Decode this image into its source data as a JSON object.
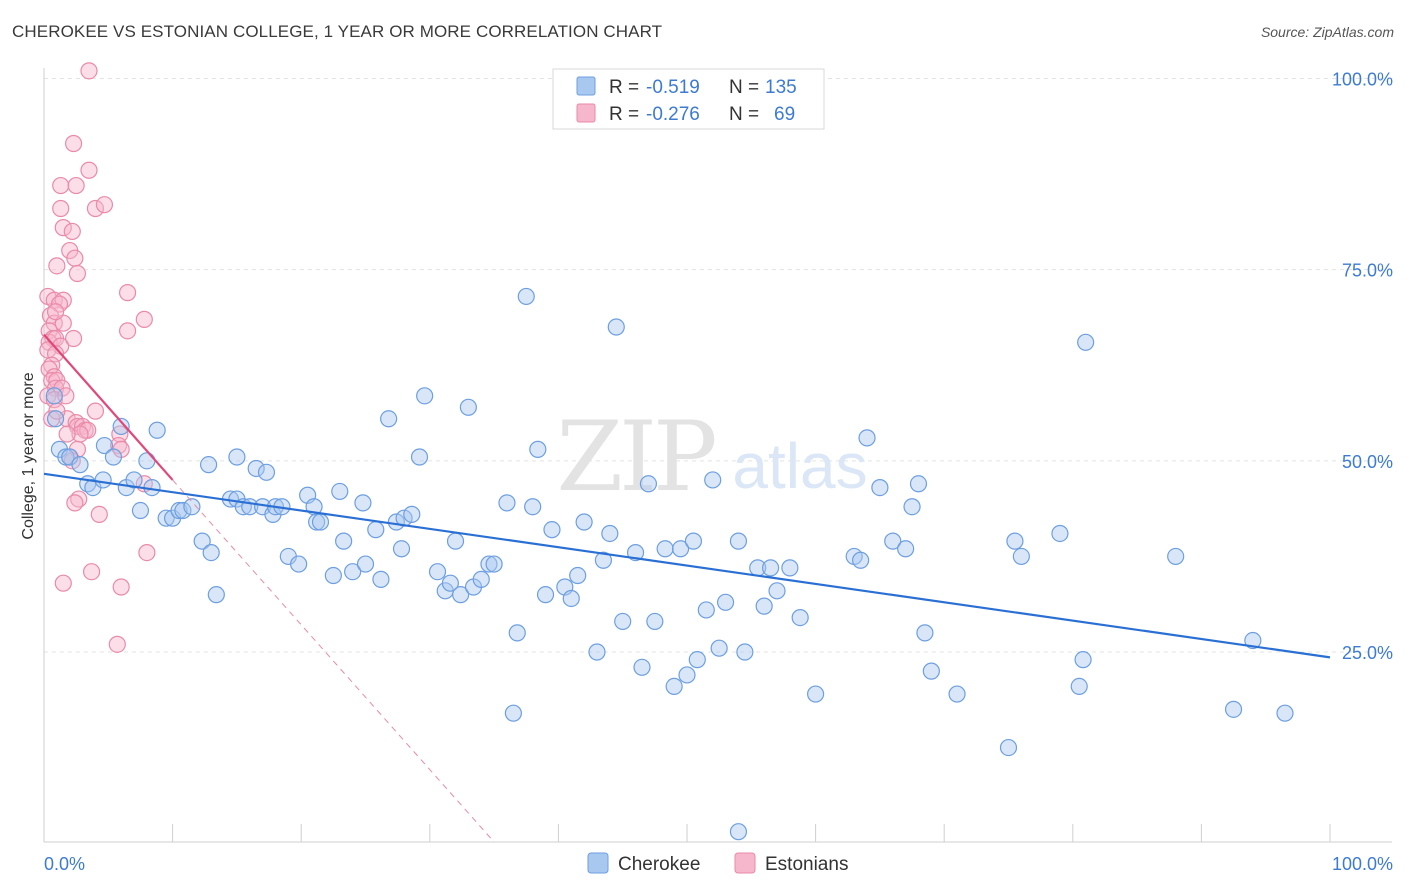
{
  "header": {
    "title": "CHEROKEE VS ESTONIAN COLLEGE, 1 YEAR OR MORE CORRELATION CHART",
    "source": "Source: ZipAtlas.com"
  },
  "colors": {
    "blue_fill": "#a9c8ef",
    "blue_stroke": "#6d9fe0",
    "blue_line": "#2a6fd4",
    "pink_fill": "#f6b6cb",
    "pink_stroke": "#ea8aa9",
    "pink_line": "#e0487a",
    "grid": "#e3e3e3",
    "axis_text": "#3d7bd1"
  },
  "legend_top": {
    "rows": [
      {
        "r_label": "R =",
        "r_value": "-0.519",
        "n_label": "N =",
        "n_value": "135"
      },
      {
        "r_label": "R =",
        "r_value": "-0.276",
        "n_label": "N =",
        "n_value": "69"
      }
    ]
  },
  "watermark": {
    "zip": "ZIP",
    "atlas": "atlas"
  },
  "chart_data": {
    "type": "scatter",
    "title": "CHEROKEE VS ESTONIAN COLLEGE, 1 YEAR OR MORE CORRELATION CHART",
    "xlabel": "",
    "ylabel": "College, 1 year or more",
    "xlim": [
      0,
      100
    ],
    "ylim": [
      0,
      102
    ],
    "x_tick_labels": [
      "0.0%",
      "100.0%"
    ],
    "y_tick_labels": [
      "25.0%",
      "50.0%",
      "75.0%",
      "100.0%"
    ],
    "y_ticks": [
      25,
      50,
      75,
      100
    ],
    "legend": [
      "Cherokee",
      "Estonians"
    ],
    "series": [
      {
        "name": "Cherokee",
        "r": -0.519,
        "n": 135,
        "trend": {
          "x0": 0,
          "y0": 48.3,
          "x1": 100,
          "y1": 24.3
        },
        "points": [
          [
            0.9,
            55.5
          ],
          [
            0.8,
            58.5
          ],
          [
            1.2,
            51.5
          ],
          [
            1.7,
            50.5
          ],
          [
            2.0,
            50.5
          ],
          [
            2.8,
            49.5
          ],
          [
            3.4,
            47.0
          ],
          [
            3.8,
            46.5
          ],
          [
            4.6,
            47.5
          ],
          [
            4.7,
            52.0
          ],
          [
            5.4,
            50.5
          ],
          [
            6.0,
            54.5
          ],
          [
            6.4,
            46.5
          ],
          [
            7.0,
            47.5
          ],
          [
            7.5,
            43.5
          ],
          [
            8.0,
            50.0
          ],
          [
            8.4,
            46.5
          ],
          [
            8.8,
            54.0
          ],
          [
            9.5,
            42.5
          ],
          [
            10.0,
            42.5
          ],
          [
            10.5,
            43.5
          ],
          [
            10.8,
            43.5
          ],
          [
            11.5,
            44.0
          ],
          [
            12.3,
            39.5
          ],
          [
            12.8,
            49.5
          ],
          [
            13.0,
            38.0
          ],
          [
            13.4,
            32.5
          ],
          [
            14.5,
            45.0
          ],
          [
            15.0,
            45.0
          ],
          [
            15.0,
            50.5
          ],
          [
            15.5,
            44.0
          ],
          [
            16.0,
            44.0
          ],
          [
            16.5,
            49.0
          ],
          [
            17.0,
            44.0
          ],
          [
            17.3,
            48.5
          ],
          [
            17.8,
            43.0
          ],
          [
            18.0,
            44.0
          ],
          [
            18.5,
            44.0
          ],
          [
            19.0,
            37.5
          ],
          [
            19.8,
            36.5
          ],
          [
            20.5,
            45.5
          ],
          [
            21.0,
            44.0
          ],
          [
            21.2,
            42.0
          ],
          [
            21.5,
            42.0
          ],
          [
            22.5,
            35.0
          ],
          [
            23.0,
            46.0
          ],
          [
            23.3,
            39.5
          ],
          [
            24.0,
            35.5
          ],
          [
            24.8,
            44.5
          ],
          [
            25.0,
            36.5
          ],
          [
            25.8,
            41.0
          ],
          [
            26.2,
            34.5
          ],
          [
            26.8,
            55.5
          ],
          [
            27.4,
            42.0
          ],
          [
            27.8,
            38.5
          ],
          [
            28.0,
            42.5
          ],
          [
            28.6,
            43.0
          ],
          [
            29.2,
            50.5
          ],
          [
            29.6,
            58.5
          ],
          [
            30.6,
            35.5
          ],
          [
            31.2,
            33.0
          ],
          [
            31.6,
            34.0
          ],
          [
            32.0,
            39.5
          ],
          [
            32.4,
            32.5
          ],
          [
            33.0,
            57.0
          ],
          [
            33.4,
            33.5
          ],
          [
            34.0,
            34.5
          ],
          [
            34.6,
            36.5
          ],
          [
            35.0,
            36.5
          ],
          [
            36.0,
            44.5
          ],
          [
            36.5,
            17.0
          ],
          [
            36.8,
            27.5
          ],
          [
            37.5,
            71.5
          ],
          [
            38.0,
            44.0
          ],
          [
            38.4,
            51.5
          ],
          [
            39.0,
            32.5
          ],
          [
            39.5,
            41.0
          ],
          [
            40.5,
            33.5
          ],
          [
            41.0,
            32.0
          ],
          [
            41.5,
            35.0
          ],
          [
            42.0,
            42.0
          ],
          [
            43.0,
            25.0
          ],
          [
            43.5,
            37.0
          ],
          [
            44.0,
            40.5
          ],
          [
            44.5,
            67.5
          ],
          [
            45.0,
            29.0
          ],
          [
            46.0,
            38.0
          ],
          [
            46.5,
            23.0
          ],
          [
            47.0,
            47.0
          ],
          [
            47.5,
            29.0
          ],
          [
            48.3,
            38.5
          ],
          [
            49.0,
            20.5
          ],
          [
            49.5,
            38.5
          ],
          [
            50.0,
            22.0
          ],
          [
            50.5,
            39.5
          ],
          [
            50.8,
            24.0
          ],
          [
            51.5,
            30.5
          ],
          [
            52.0,
            47.5
          ],
          [
            52.5,
            25.5
          ],
          [
            53.0,
            31.5
          ],
          [
            54.0,
            39.5
          ],
          [
            54.5,
            25.0
          ],
          [
            55.5,
            36.0
          ],
          [
            56.0,
            31.0
          ],
          [
            56.5,
            36.0
          ],
          [
            57.0,
            33.0
          ],
          [
            58.0,
            36.0
          ],
          [
            58.8,
            29.5
          ],
          [
            60.0,
            19.5
          ],
          [
            63.0,
            37.5
          ],
          [
            63.5,
            37.0
          ],
          [
            64.0,
            53.0
          ],
          [
            65.0,
            46.5
          ],
          [
            66.0,
            39.5
          ],
          [
            67.0,
            38.5
          ],
          [
            67.5,
            44.0
          ],
          [
            68.0,
            47.0
          ],
          [
            68.5,
            27.5
          ],
          [
            69.0,
            22.5
          ],
          [
            71.0,
            19.5
          ],
          [
            75.0,
            12.5
          ],
          [
            75.5,
            39.5
          ],
          [
            76.0,
            37.5
          ],
          [
            79.0,
            40.5
          ],
          [
            80.5,
            20.5
          ],
          [
            80.8,
            24.0
          ],
          [
            81.0,
            65.5
          ],
          [
            88.0,
            37.5
          ],
          [
            92.5,
            17.5
          ],
          [
            94.0,
            26.5
          ],
          [
            96.5,
            17.0
          ],
          [
            54.0,
            1.5
          ]
        ]
      },
      {
        "name": "Estonians",
        "r": -0.276,
        "n": 69,
        "trend": {
          "x0": 0,
          "y0": 66.5,
          "x1": 10,
          "y1": 47.5
        },
        "trend_ext": {
          "x0": 10,
          "y0": 47.5,
          "x1": 35,
          "y1": 0
        },
        "points": [
          [
            3.5,
            101
          ],
          [
            2.3,
            91.5
          ],
          [
            3.5,
            88.0
          ],
          [
            1.3,
            86.0
          ],
          [
            2.5,
            86.0
          ],
          [
            4.0,
            83.0
          ],
          [
            4.7,
            83.5
          ],
          [
            1.3,
            83.0
          ],
          [
            1.5,
            80.5
          ],
          [
            2.2,
            80.0
          ],
          [
            2.0,
            77.5
          ],
          [
            2.4,
            76.5
          ],
          [
            1.0,
            75.5
          ],
          [
            2.6,
            74.5
          ],
          [
            0.3,
            71.5
          ],
          [
            0.8,
            71.0
          ],
          [
            1.5,
            71.0
          ],
          [
            1.2,
            70.5
          ],
          [
            0.5,
            69.0
          ],
          [
            0.8,
            68.0
          ],
          [
            1.5,
            68.0
          ],
          [
            0.4,
            67.0
          ],
          [
            0.7,
            66.0
          ],
          [
            0.4,
            65.5
          ],
          [
            0.9,
            66.0
          ],
          [
            1.3,
            65.0
          ],
          [
            0.3,
            64.5
          ],
          [
            0.9,
            64.0
          ],
          [
            0.6,
            62.5
          ],
          [
            0.4,
            62.0
          ],
          [
            0.8,
            61.0
          ],
          [
            0.6,
            60.5
          ],
          [
            1.0,
            60.5
          ],
          [
            0.9,
            59.5
          ],
          [
            1.4,
            59.5
          ],
          [
            0.3,
            58.5
          ],
          [
            0.8,
            58.0
          ],
          [
            0.6,
            55.5
          ],
          [
            1.8,
            55.5
          ],
          [
            4.0,
            56.5
          ],
          [
            2.5,
            55.0
          ],
          [
            2.6,
            54.5
          ],
          [
            3.0,
            54.5
          ],
          [
            3.2,
            54.0
          ],
          [
            3.4,
            54.0
          ],
          [
            2.8,
            53.5
          ],
          [
            1.8,
            53.5
          ],
          [
            5.9,
            53.5
          ],
          [
            5.8,
            52.0
          ],
          [
            2.6,
            51.5
          ],
          [
            2.0,
            50.5
          ],
          [
            2.2,
            50.0
          ],
          [
            6.0,
            51.5
          ],
          [
            7.8,
            47.0
          ],
          [
            2.7,
            45.0
          ],
          [
            2.4,
            44.5
          ],
          [
            4.3,
            43.0
          ],
          [
            8.0,
            38.0
          ],
          [
            3.7,
            35.5
          ],
          [
            1.5,
            34.0
          ],
          [
            6.0,
            33.5
          ],
          [
            5.7,
            26.0
          ],
          [
            6.5,
            67.0
          ],
          [
            6.5,
            72.0
          ],
          [
            7.8,
            68.5
          ],
          [
            2.3,
            66.0
          ],
          [
            0.9,
            69.5
          ],
          [
            1.7,
            58.5
          ],
          [
            1.0,
            56.5
          ]
        ]
      }
    ]
  }
}
